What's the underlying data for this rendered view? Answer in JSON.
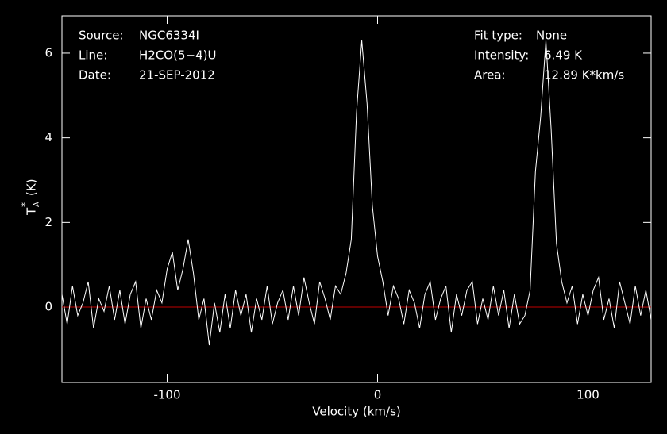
{
  "chart_data": {
    "type": "line",
    "xlabel": "Velocity (km/s)",
    "ylabel": {
      "symbol": "T",
      "subscript": "A",
      "superscript": "*",
      "unit": "(K)"
    },
    "annotations_left": [
      [
        "Source:",
        "NGC6334I"
      ],
      [
        "Line:",
        "H2CO(5−4)U"
      ],
      [
        "Date:",
        "21-SEP-2012"
      ]
    ],
    "annotations_right": [
      [
        "Fit type:",
        "None"
      ],
      [
        "Intensity:",
        "6.49 K"
      ],
      [
        "Area:",
        "12.89 K*km/s"
      ]
    ],
    "xlim": [
      -150,
      130
    ],
    "xticks": [
      -100,
      0,
      100
    ],
    "ylim": [
      -1.78,
      6.88
    ],
    "yticks": [
      0,
      2,
      4,
      6
    ],
    "hline": 0,
    "hline_color": "#c00000",
    "x": [
      -150,
      -147.5,
      -145,
      -142.5,
      -140,
      -137.5,
      -135,
      -132.5,
      -130,
      -127.5,
      -125,
      -122.5,
      -120,
      -117.5,
      -115,
      -112.5,
      -110,
      -107.5,
      -105,
      -102.5,
      -100,
      -97.5,
      -95,
      -92.5,
      -90,
      -87.5,
      -85,
      -82.5,
      -80,
      -77.5,
      -75,
      -72.5,
      -70,
      -67.5,
      -65,
      -62.5,
      -60,
      -57.5,
      -55,
      -52.5,
      -50,
      -47.5,
      -45,
      -42.5,
      -40,
      -37.5,
      -35,
      -32.5,
      -30,
      -27.5,
      -25,
      -22.5,
      -20,
      -17.5,
      -15,
      -12.5,
      -10,
      -7.5,
      -5,
      -2.5,
      0,
      2.5,
      5,
      7.5,
      10,
      12.5,
      15,
      17.5,
      20,
      22.5,
      25,
      27.5,
      30,
      32.5,
      35,
      37.5,
      40,
      42.5,
      45,
      47.5,
      50,
      52.5,
      55,
      57.5,
      60,
      62.5,
      65,
      67.5,
      70,
      72.5,
      75,
      77.5,
      80,
      82.5,
      85,
      87.5,
      90,
      92.5,
      95,
      97.5,
      100,
      102.5,
      105,
      107.5,
      110,
      112.5,
      115,
      117.5,
      120,
      122.5,
      125,
      127.5,
      130
    ],
    "series": [
      {
        "color": "#ffffff",
        "values": [
          0.3,
          -0.4,
          0.5,
          -0.2,
          0.1,
          0.6,
          -0.5,
          0.2,
          -0.1,
          0.5,
          -0.3,
          0.4,
          -0.4,
          0.3,
          0.6,
          -0.5,
          0.2,
          -0.3,
          0.4,
          0.1,
          0.9,
          1.3,
          0.4,
          0.9,
          1.6,
          0.8,
          -0.3,
          0.2,
          -0.9,
          0.1,
          -0.6,
          0.3,
          -0.5,
          0.4,
          -0.2,
          0.3,
          -0.6,
          0.2,
          -0.3,
          0.5,
          -0.4,
          0.1,
          0.4,
          -0.3,
          0.5,
          -0.2,
          0.7,
          0.1,
          -0.4,
          0.6,
          0.2,
          -0.3,
          0.5,
          0.3,
          0.8,
          1.6,
          4.6,
          6.3,
          4.8,
          2.4,
          1.2,
          0.6,
          -0.2,
          0.5,
          0.2,
          -0.4,
          0.4,
          0.1,
          -0.5,
          0.3,
          0.6,
          -0.3,
          0.2,
          0.5,
          -0.6,
          0.3,
          -0.2,
          0.4,
          0.6,
          -0.4,
          0.2,
          -0.3,
          0.5,
          -0.2,
          0.4,
          -0.5,
          0.3,
          -0.4,
          -0.2,
          0.4,
          3.2,
          4.5,
          6.3,
          4.2,
          1.5,
          0.6,
          0.1,
          0.5,
          -0.4,
          0.3,
          -0.2,
          0.4,
          0.7,
          -0.3,
          0.2,
          -0.5,
          0.6,
          0.1,
          -0.4,
          0.5,
          -0.2,
          0.4,
          -0.3
        ]
      }
    ]
  }
}
